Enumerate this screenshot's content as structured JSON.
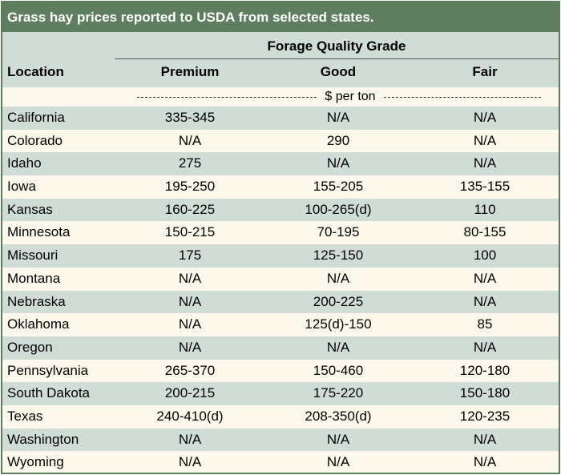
{
  "title": "Grass hay prices reported to USDA from selected states.",
  "header": {
    "group_label": "Forage Quality Grade",
    "location_label": "Location",
    "columns": [
      "Premium",
      "Good",
      "Fair"
    ]
  },
  "unit_label": "$ per ton",
  "rows": [
    {
      "location": "California",
      "premium": "335-345",
      "good": "N/A",
      "fair": "N/A"
    },
    {
      "location": "Colorado",
      "premium": "N/A",
      "good": "290",
      "fair": "N/A"
    },
    {
      "location": "Idaho",
      "premium": "275",
      "good": "N/A",
      "fair": "N/A"
    },
    {
      "location": "Iowa",
      "premium": "195-250",
      "good": "155-205",
      "fair": "135-155"
    },
    {
      "location": "Kansas",
      "premium": "160-225",
      "good": "100-265(d)",
      "fair": "110"
    },
    {
      "location": "Minnesota",
      "premium": "150-215",
      "good": "70-195",
      "fair": "80-155"
    },
    {
      "location": "Missouri",
      "premium": "175",
      "good": "125-150",
      "fair": "100"
    },
    {
      "location": "Montana",
      "premium": "N/A",
      "good": "N/A",
      "fair": "N/A"
    },
    {
      "location": "Nebraska",
      "premium": "N/A",
      "good": "200-225",
      "fair": "N/A"
    },
    {
      "location": "Oklahoma",
      "premium": "N/A",
      "good": "125(d)-150",
      "fair": "85"
    },
    {
      "location": "Oregon",
      "premium": "N/A",
      "good": "N/A",
      "fair": "N/A"
    },
    {
      "location": "Pennsylvania",
      "premium": "265-370",
      "good": "150-460",
      "fair": "120-180"
    },
    {
      "location": "South Dakota",
      "premium": "200-215",
      "good": "175-220",
      "fair": "150-180"
    },
    {
      "location": "Texas",
      "premium": "240-410(d)",
      "good": "208-350(d)",
      "fair": "120-235"
    },
    {
      "location": "Washington",
      "premium": "N/A",
      "good": "N/A",
      "fair": "N/A"
    },
    {
      "location": "Wyoming",
      "premium": "N/A",
      "good": "N/A",
      "fair": "N/A"
    }
  ],
  "colors": {
    "title_bar": "#5f7e5f",
    "band": "#cfddd6",
    "cream": "#fcf9ec"
  }
}
